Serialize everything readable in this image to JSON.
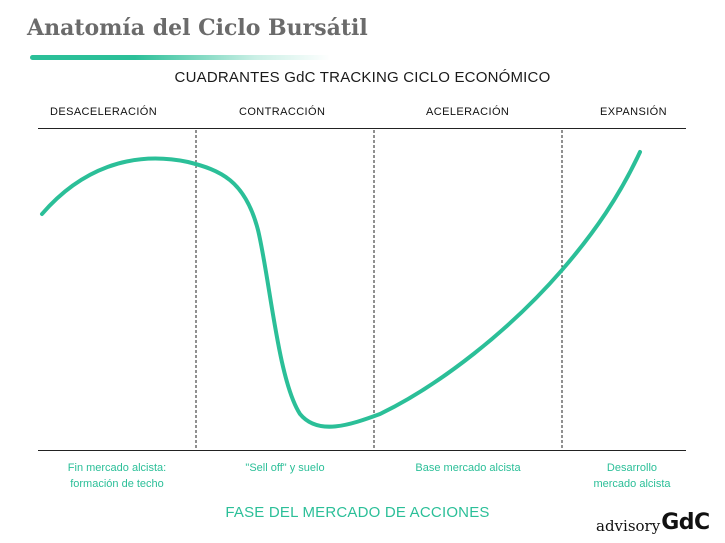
{
  "page_title": "Anatomía del Ciclo Bursátil",
  "diagram_title": "CUADRANTES GdC TRACKING CICLO ECONÓMICO",
  "quadrants": [
    "DESACELERACIÓN",
    "CONTRACCIÓN",
    "ACELERACIÓN",
    "EXPANSIÓN"
  ],
  "phase_captions": [
    [
      "Fin mercado alcista:",
      "formación de techo"
    ],
    [
      "\"Sell off\" y suelo"
    ],
    [
      "Base mercado alcista"
    ],
    [
      "Desarrollo",
      "mercado alcista"
    ]
  ],
  "footer_title": "FASE DEL MERCADO DE ACCIONES",
  "brand": {
    "advisory": "advisory",
    "gdc": "GdC"
  },
  "colors": {
    "accent": "#2bbf98",
    "title_gray": "#6b6b6b",
    "text": "#111111"
  }
}
